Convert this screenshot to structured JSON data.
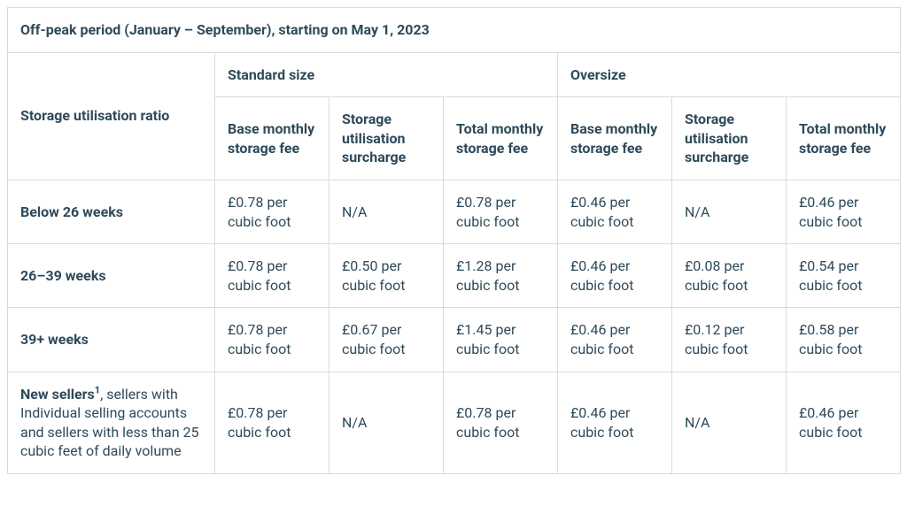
{
  "title": "Off-peak period (January – September), starting on May 1, 2023",
  "groupHeaders": {
    "ratio": "Storage utilisation ratio",
    "standard": "Standard size",
    "oversize": "Oversize"
  },
  "subHeaders": {
    "base": "Base monthly storage fee",
    "surcharge": "Storage utilisation surcharge",
    "total": "Total monthly storage fee"
  },
  "rows": [
    {
      "label": "Below 26 weeks",
      "labelHtml": "Below 26 weeks",
      "isMixed": false,
      "std": {
        "base": "£0.78 per cubic foot",
        "surcharge": "N/A",
        "total": "£0.78 per cubic foot"
      },
      "ovr": {
        "base": "£0.46 per cubic foot",
        "surcharge": "N/A",
        "total": "£0.46 per cubic foot"
      }
    },
    {
      "label": "26–39 weeks",
      "labelHtml": "26–39 weeks",
      "isMixed": false,
      "std": {
        "base": "£0.78 per cubic foot",
        "surcharge": "£0.50 per cubic foot",
        "total": "£1.28 per cubic foot"
      },
      "ovr": {
        "base": "£0.46 per cubic foot",
        "surcharge": "£0.08 per cubic foot",
        "total": "£0.54 per cubic foot"
      }
    },
    {
      "label": "39+ weeks",
      "labelHtml": "39+ weeks",
      "isMixed": false,
      "std": {
        "base": "£0.78 per cubic foot",
        "surcharge": "£0.67 per cubic foot",
        "total": "£1.45 per cubic foot"
      },
      "ovr": {
        "base": "£0.46 per cubic foot",
        "surcharge": "£0.12 per cubic foot",
        "total": "£0.58 per cubic foot"
      }
    },
    {
      "label": "New sellers, sellers with Individual selling accounts and sellers with less than 25 cubic feet of daily volume",
      "labelLead": "New sellers",
      "labelSup": "1",
      "labelTail": ", sellers with Individual selling accounts and sellers with less than 25 cubic feet of daily volume",
      "isMixed": true,
      "std": {
        "base": "£0.78 per cubic foot",
        "surcharge": "N/A",
        "total": "£0.78 per cubic foot"
      },
      "ovr": {
        "base": "£0.46 per cubic foot",
        "surcharge": "N/A",
        "total": "£0.46 per cubic foot"
      }
    }
  ],
  "style": {
    "tableWidth": 1008,
    "borderColor": "#d8dcde",
    "textColor": "#2e4a5a",
    "backgroundColor": "#ffffff",
    "fontSize": 16,
    "cellPadding": "14px 14px",
    "colRatioWidth": 234,
    "colDataWidth": 129
  }
}
